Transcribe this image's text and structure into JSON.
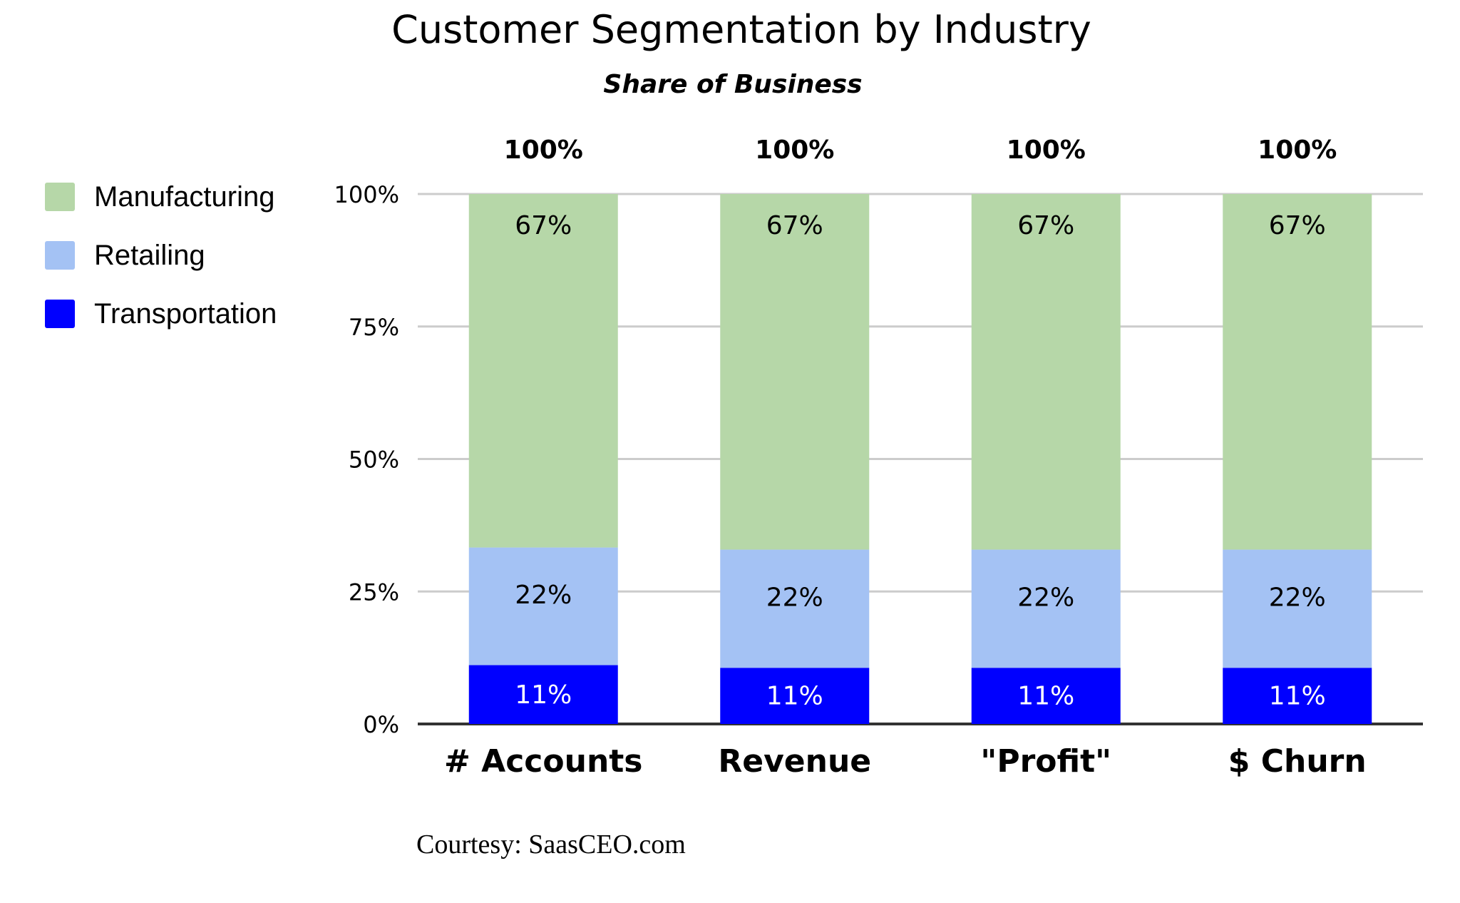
{
  "chart_data": {
    "type": "bar",
    "stacked": true,
    "title": "Customer Segmentation by Industry",
    "subtitle": "Share of Business",
    "categories": [
      "# Accounts",
      "Revenue",
      "\"Profit\"",
      "$ Churn"
    ],
    "totals": [
      "100%",
      "100%",
      "100%",
      "100%"
    ],
    "series": [
      {
        "name": "Transportation",
        "color": "#0000ff",
        "label_color": "#ffffff",
        "values": [
          11.1,
          10.6,
          10.6,
          10.6
        ],
        "labels": [
          "11%",
          "11%",
          "11%",
          "11%"
        ]
      },
      {
        "name": "Retailing",
        "color": "#a4c2f4",
        "label_color": "#000000",
        "values": [
          22.2,
          22.3,
          22.3,
          22.3
        ],
        "labels": [
          "22%",
          "22%",
          "22%",
          "22%"
        ]
      },
      {
        "name": "Manufacturing",
        "color": "#b6d7a8",
        "label_color": "#000000",
        "values": [
          66.7,
          67.1,
          67.1,
          67.1
        ],
        "labels": [
          "67%",
          "67%",
          "67%",
          "67%"
        ]
      }
    ],
    "legend_order": [
      "Manufacturing",
      "Retailing",
      "Transportation"
    ],
    "legend_position": "left",
    "yticks": [
      "0%",
      "25%",
      "50%",
      "75%",
      "100%"
    ],
    "ylim": [
      0,
      100
    ],
    "grid": true,
    "xlabel": "",
    "ylabel": ""
  },
  "footer": "Courtesy: SaasCEO.com"
}
